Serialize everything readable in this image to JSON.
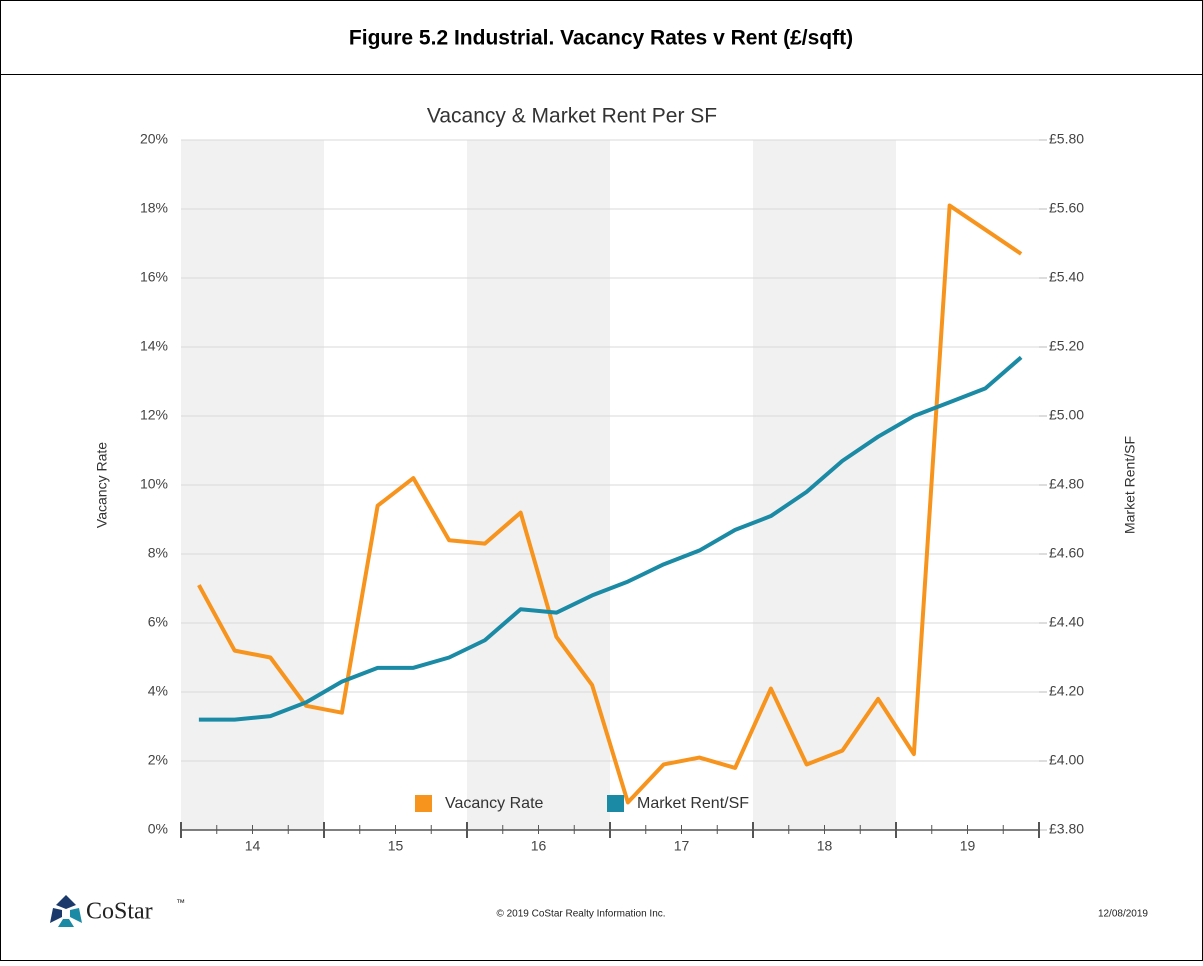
{
  "header": {
    "title": "Figure 5.2  Industrial. Vacancy Rates v Rent (£/sqft)"
  },
  "chart_data": {
    "type": "line",
    "title": "Vacancy & Market Rent Per SF",
    "ylabel": "Vacancy Rate",
    "y2label": "Market Rent/SF",
    "x": [
      13.625,
      13.875,
      14.125,
      14.375,
      14.625,
      14.875,
      15.125,
      15.375,
      15.625,
      15.875,
      16.125,
      16.375,
      16.625,
      16.875,
      17.125,
      17.375,
      17.625,
      17.875,
      18.125,
      18.375,
      18.625,
      18.875,
      19.125,
      19.375
    ],
    "xlim": [
      13.5,
      19.5
    ],
    "xticks": [
      14,
      15,
      16,
      17,
      18,
      19
    ],
    "ylim": [
      0,
      20
    ],
    "yticks": [
      {
        "value": 0,
        "label": "0%"
      },
      {
        "value": 2,
        "label": "2%"
      },
      {
        "value": 4,
        "label": "4%"
      },
      {
        "value": 6,
        "label": "6%"
      },
      {
        "value": 8,
        "label": "8%"
      },
      {
        "value": 10,
        "label": "10%"
      },
      {
        "value": 12,
        "label": "12%"
      },
      {
        "value": 14,
        "label": "14%"
      },
      {
        "value": 16,
        "label": "16%"
      },
      {
        "value": 18,
        "label": "18%"
      },
      {
        "value": 20,
        "label": "20%"
      }
    ],
    "y2lim": [
      3.8,
      5.8
    ],
    "y2ticks": [
      {
        "value": 3.8,
        "label": "£3.80"
      },
      {
        "value": 4.0,
        "label": "£4.00"
      },
      {
        "value": 4.2,
        "label": "£4.20"
      },
      {
        "value": 4.4,
        "label": "£4.40"
      },
      {
        "value": 4.6,
        "label": "£4.60"
      },
      {
        "value": 4.8,
        "label": "£4.80"
      },
      {
        "value": 5.0,
        "label": "£5.00"
      },
      {
        "value": 5.2,
        "label": "£5.20"
      },
      {
        "value": 5.4,
        "label": "£5.40"
      },
      {
        "value": 5.6,
        "label": "£5.60"
      },
      {
        "value": 5.8,
        "label": "£5.80"
      }
    ],
    "grid": true,
    "series": [
      {
        "name": "Vacancy Rate",
        "color": "#f7941d",
        "values": [
          7.1,
          5.2,
          5.0,
          3.6,
          3.4,
          9.4,
          10.2,
          8.4,
          8.3,
          9.2,
          5.6,
          4.2,
          0.8,
          1.9,
          2.1,
          1.8,
          4.1,
          1.9,
          2.3,
          3.8,
          2.2,
          18.1,
          17.4,
          16.7
        ]
      },
      {
        "name": "Market Rent/SF",
        "color": "#1b8aa5",
        "axis": "y2",
        "values": [
          4.12,
          4.12,
          4.13,
          4.17,
          4.23,
          4.27,
          4.27,
          4.3,
          4.35,
          4.44,
          4.43,
          4.48,
          4.52,
          4.57,
          4.61,
          4.67,
          4.71,
          4.78,
          4.87,
          4.94,
          5.0,
          5.04,
          5.08,
          5.17
        ]
      }
    ]
  },
  "footer": {
    "brand": "CoStar",
    "trademark": "™",
    "copyright": "© 2019 CoStar Realty Information Inc.",
    "date": "12/08/2019"
  }
}
